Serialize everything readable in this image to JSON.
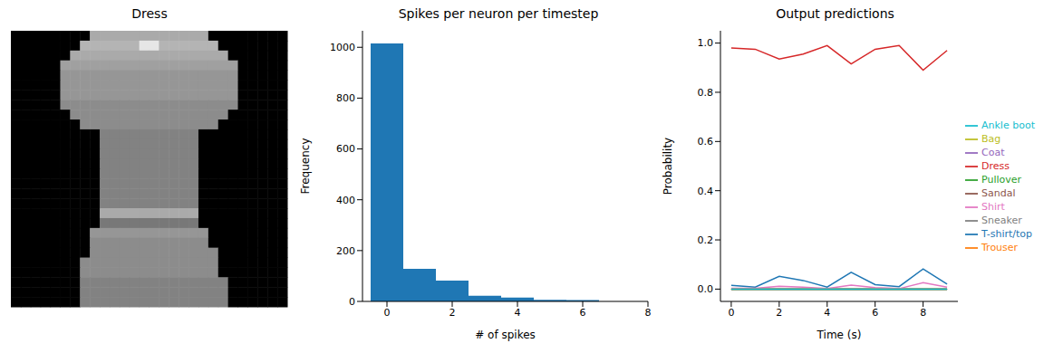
{
  "chart_data": [
    {
      "type": "image",
      "title": "Dress",
      "tick_labels": false,
      "pixels": [
        [
          0,
          0,
          0,
          0,
          0,
          0,
          0,
          0,
          170,
          170,
          170,
          170,
          170,
          170,
          170,
          170,
          170,
          170,
          170,
          170,
          0,
          0,
          0,
          0,
          0,
          0,
          0,
          0
        ],
        [
          0,
          0,
          0,
          0,
          0,
          0,
          0,
          180,
          180,
          180,
          180,
          180,
          180,
          230,
          230,
          180,
          180,
          180,
          180,
          180,
          180,
          0,
          0,
          0,
          0,
          0,
          0,
          0
        ],
        [
          0,
          0,
          0,
          0,
          0,
          0,
          170,
          170,
          170,
          170,
          170,
          170,
          170,
          170,
          170,
          170,
          170,
          170,
          170,
          170,
          170,
          170,
          0,
          0,
          0,
          0,
          0,
          0
        ],
        [
          0,
          0,
          0,
          0,
          0,
          160,
          160,
          160,
          160,
          160,
          160,
          160,
          160,
          160,
          160,
          160,
          160,
          160,
          160,
          160,
          160,
          160,
          160,
          0,
          0,
          0,
          0,
          0
        ],
        [
          0,
          0,
          0,
          0,
          0,
          150,
          150,
          150,
          150,
          150,
          150,
          150,
          150,
          150,
          150,
          150,
          150,
          150,
          150,
          150,
          150,
          150,
          150,
          0,
          0,
          0,
          0,
          0
        ],
        [
          0,
          0,
          0,
          0,
          0,
          150,
          150,
          150,
          150,
          150,
          150,
          150,
          150,
          150,
          150,
          150,
          150,
          150,
          150,
          150,
          150,
          150,
          150,
          0,
          0,
          0,
          0,
          0
        ],
        [
          0,
          0,
          0,
          0,
          0,
          150,
          150,
          150,
          150,
          150,
          150,
          150,
          150,
          150,
          150,
          150,
          150,
          150,
          150,
          150,
          150,
          150,
          150,
          0,
          0,
          0,
          0,
          0
        ],
        [
          0,
          0,
          0,
          0,
          0,
          140,
          140,
          140,
          140,
          140,
          140,
          140,
          140,
          140,
          140,
          140,
          140,
          140,
          140,
          140,
          140,
          140,
          140,
          0,
          0,
          0,
          0,
          0
        ],
        [
          0,
          0,
          0,
          0,
          0,
          0,
          140,
          140,
          140,
          140,
          140,
          140,
          140,
          140,
          140,
          140,
          140,
          140,
          140,
          140,
          140,
          140,
          0,
          0,
          0,
          0,
          0,
          0
        ],
        [
          0,
          0,
          0,
          0,
          0,
          0,
          0,
          140,
          140,
          140,
          140,
          140,
          140,
          140,
          140,
          140,
          140,
          140,
          140,
          140,
          140,
          0,
          0,
          0,
          0,
          0,
          0,
          0
        ],
        [
          0,
          0,
          0,
          0,
          0,
          0,
          0,
          0,
          0,
          130,
          130,
          130,
          130,
          130,
          130,
          130,
          130,
          130,
          130,
          0,
          0,
          0,
          0,
          0,
          0,
          0,
          0,
          0
        ],
        [
          0,
          0,
          0,
          0,
          0,
          0,
          0,
          0,
          0,
          130,
          130,
          130,
          130,
          130,
          130,
          130,
          130,
          130,
          130,
          0,
          0,
          0,
          0,
          0,
          0,
          0,
          0,
          0
        ],
        [
          0,
          0,
          0,
          0,
          0,
          0,
          0,
          0,
          0,
          130,
          130,
          130,
          130,
          130,
          130,
          130,
          130,
          130,
          130,
          0,
          0,
          0,
          0,
          0,
          0,
          0,
          0,
          0
        ],
        [
          0,
          0,
          0,
          0,
          0,
          0,
          0,
          0,
          0,
          130,
          130,
          130,
          130,
          130,
          130,
          130,
          130,
          130,
          130,
          0,
          0,
          0,
          0,
          0,
          0,
          0,
          0,
          0
        ],
        [
          0,
          0,
          0,
          0,
          0,
          0,
          0,
          0,
          0,
          130,
          130,
          130,
          130,
          130,
          130,
          130,
          130,
          130,
          130,
          0,
          0,
          0,
          0,
          0,
          0,
          0,
          0,
          0
        ],
        [
          0,
          0,
          0,
          0,
          0,
          0,
          0,
          0,
          0,
          130,
          130,
          130,
          130,
          130,
          130,
          130,
          130,
          130,
          130,
          0,
          0,
          0,
          0,
          0,
          0,
          0,
          0,
          0
        ],
        [
          0,
          0,
          0,
          0,
          0,
          0,
          0,
          0,
          0,
          130,
          130,
          130,
          130,
          130,
          130,
          130,
          130,
          130,
          130,
          0,
          0,
          0,
          0,
          0,
          0,
          0,
          0,
          0
        ],
        [
          0,
          0,
          0,
          0,
          0,
          0,
          0,
          0,
          0,
          130,
          130,
          130,
          130,
          130,
          130,
          130,
          130,
          130,
          130,
          0,
          0,
          0,
          0,
          0,
          0,
          0,
          0,
          0
        ],
        [
          0,
          0,
          0,
          0,
          0,
          0,
          0,
          0,
          0,
          170,
          170,
          170,
          170,
          170,
          170,
          170,
          170,
          170,
          170,
          0,
          0,
          0,
          0,
          0,
          0,
          0,
          0,
          0
        ],
        [
          0,
          0,
          0,
          0,
          0,
          0,
          0,
          0,
          0,
          120,
          120,
          120,
          120,
          120,
          120,
          120,
          120,
          120,
          120,
          0,
          0,
          0,
          0,
          0,
          0,
          0,
          0,
          0
        ],
        [
          0,
          0,
          0,
          0,
          0,
          0,
          0,
          0,
          150,
          150,
          150,
          150,
          150,
          150,
          150,
          150,
          150,
          150,
          150,
          150,
          0,
          0,
          0,
          0,
          0,
          0,
          0,
          0
        ],
        [
          0,
          0,
          0,
          0,
          0,
          0,
          0,
          0,
          140,
          140,
          140,
          140,
          140,
          140,
          140,
          140,
          140,
          140,
          140,
          140,
          0,
          0,
          0,
          0,
          0,
          0,
          0,
          0
        ],
        [
          0,
          0,
          0,
          0,
          0,
          0,
          0,
          0,
          140,
          140,
          140,
          140,
          140,
          140,
          140,
          140,
          140,
          140,
          140,
          140,
          140,
          0,
          0,
          0,
          0,
          0,
          0,
          0
        ],
        [
          0,
          0,
          0,
          0,
          0,
          0,
          0,
          140,
          140,
          140,
          140,
          140,
          140,
          140,
          140,
          140,
          140,
          140,
          140,
          140,
          140,
          0,
          0,
          0,
          0,
          0,
          0,
          0
        ],
        [
          0,
          0,
          0,
          0,
          0,
          0,
          0,
          140,
          140,
          140,
          140,
          140,
          140,
          140,
          140,
          140,
          140,
          140,
          140,
          140,
          140,
          0,
          0,
          0,
          0,
          0,
          0,
          0
        ],
        [
          0,
          0,
          0,
          0,
          0,
          0,
          0,
          130,
          130,
          130,
          130,
          130,
          130,
          130,
          130,
          130,
          130,
          130,
          130,
          130,
          130,
          130,
          0,
          0,
          0,
          0,
          0,
          0
        ],
        [
          0,
          0,
          0,
          0,
          0,
          0,
          0,
          130,
          130,
          130,
          130,
          130,
          130,
          130,
          130,
          130,
          130,
          130,
          130,
          130,
          130,
          130,
          0,
          0,
          0,
          0,
          0,
          0
        ],
        [
          0,
          0,
          0,
          0,
          0,
          0,
          0,
          130,
          130,
          130,
          130,
          130,
          130,
          130,
          130,
          130,
          130,
          130,
          130,
          130,
          130,
          130,
          0,
          0,
          0,
          0,
          0,
          0
        ]
      ]
    },
    {
      "type": "histogram",
      "title": "Spikes per neuron per timestep",
      "x_label": "# of spikes",
      "y_label": "Frequency",
      "bins": [
        -0.5,
        0.5,
        1.5,
        2.5,
        3.5,
        4.5,
        5.5,
        6.5
      ],
      "values": [
        1015,
        128,
        82,
        22,
        15,
        6,
        5
      ],
      "color": "#1f77b4",
      "xlim": [
        -0.75,
        8
      ],
      "xticks": [
        0,
        2,
        4,
        6,
        8
      ],
      "ylim": [
        0,
        1065
      ],
      "yticks": [
        0,
        200,
        400,
        600,
        800,
        1000
      ]
    },
    {
      "type": "line",
      "title": "Output predictions",
      "x_label": "Time (s)",
      "y_label": "Probability",
      "x": [
        0,
        1,
        2,
        3,
        4,
        5,
        6,
        7,
        8,
        9
      ],
      "series": [
        {
          "name": "T-shirt/top",
          "color": "#1f77b4",
          "values": [
            0.015,
            0.008,
            0.052,
            0.035,
            0.008,
            0.068,
            0.018,
            0.01,
            0.082,
            0.02
          ]
        },
        {
          "name": "Trouser",
          "color": "#ff7f0e",
          "values": [
            0,
            0,
            0,
            0,
            0,
            0,
            0,
            0,
            0,
            0
          ]
        },
        {
          "name": "Pullover",
          "color": "#2ca02c",
          "values": [
            0,
            0,
            0,
            0,
            0,
            0,
            0,
            0,
            0,
            0
          ]
        },
        {
          "name": "Dress",
          "color": "#d62728",
          "values": [
            0.98,
            0.975,
            0.935,
            0.955,
            0.99,
            0.915,
            0.975,
            0.99,
            0.89,
            0.97
          ]
        },
        {
          "name": "Coat",
          "color": "#9467bd",
          "values": [
            0,
            0,
            0,
            0,
            0,
            0,
            0,
            0,
            0,
            0
          ]
        },
        {
          "name": "Sandal",
          "color": "#8c564b",
          "values": [
            0,
            0,
            0,
            0,
            0,
            0,
            0,
            0,
            0,
            0
          ]
        },
        {
          "name": "Shirt",
          "color": "#e377c2",
          "values": [
            0.003,
            0.003,
            0.012,
            0.008,
            0.002,
            0.016,
            0.006,
            0.002,
            0.026,
            0.008
          ]
        },
        {
          "name": "Sneaker",
          "color": "#7f7f7f",
          "values": [
            0,
            0,
            0,
            0,
            0,
            0,
            0,
            0,
            0,
            0
          ]
        },
        {
          "name": "Bag",
          "color": "#bcbd22",
          "values": [
            0,
            0,
            0,
            0,
            0,
            0,
            0,
            0,
            0,
            0
          ]
        },
        {
          "name": "Ankle boot",
          "color": "#17becf",
          "values": [
            0,
            0,
            0,
            0,
            0,
            0,
            0,
            0,
            0,
            0
          ]
        }
      ],
      "xlim": [
        -0.45,
        9.45
      ],
      "xticks": [
        0,
        2,
        4,
        6,
        8
      ],
      "ylim": [
        -0.05,
        1.05
      ],
      "yticks": [
        {
          "value": 0,
          "label": "0.0"
        },
        {
          "value": 0.2,
          "label": "0.2"
        },
        {
          "value": 0.4,
          "label": "0.4"
        },
        {
          "value": 0.6,
          "label": "0.6"
        },
        {
          "value": 0.8,
          "label": "0.8"
        },
        {
          "value": 1,
          "label": "1.0"
        }
      ],
      "legend": "right"
    }
  ]
}
